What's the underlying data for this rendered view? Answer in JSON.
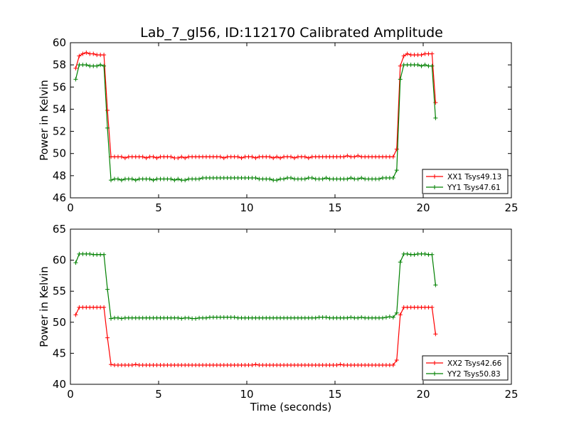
{
  "title": "Lab_7_gl56, ID:112170 Calibrated Amplitude",
  "chart_data": [
    {
      "type": "line",
      "title": "Lab_7_gl56, ID:112170 Calibrated Amplitude",
      "xlabel": "",
      "ylabel": "Power in Kelvin",
      "xlim": [
        0,
        25
      ],
      "ylim": [
        46,
        60
      ],
      "xticks": [
        0,
        5,
        10,
        15,
        20,
        25
      ],
      "yticks": [
        46,
        48,
        50,
        52,
        54,
        56,
        58,
        60
      ],
      "grid": false,
      "legend_position": "lower-right",
      "series": [
        {
          "name": "XX1 Tsys49.13",
          "color": "#ff0000",
          "x": [
            0.3,
            0.5,
            0.7,
            0.9,
            1.1,
            1.3,
            1.5,
            1.7,
            1.9,
            2.1,
            2.3,
            2.5,
            2.7,
            2.9,
            3.1,
            3.3,
            3.5,
            3.7,
            3.9,
            4.1,
            4.3,
            4.5,
            4.7,
            4.9,
            5.1,
            5.3,
            5.5,
            5.7,
            5.9,
            6.1,
            6.3,
            6.5,
            6.7,
            6.9,
            7.1,
            7.3,
            7.5,
            7.7,
            7.9,
            8.1,
            8.3,
            8.5,
            8.7,
            8.9,
            9.1,
            9.3,
            9.5,
            9.7,
            9.9,
            10.1,
            10.3,
            10.5,
            10.7,
            10.9,
            11.1,
            11.3,
            11.5,
            11.7,
            11.9,
            12.1,
            12.3,
            12.5,
            12.7,
            12.9,
            13.1,
            13.3,
            13.5,
            13.7,
            13.9,
            14.1,
            14.3,
            14.5,
            14.7,
            14.9,
            15.1,
            15.3,
            15.5,
            15.7,
            15.9,
            16.1,
            16.3,
            16.5,
            16.7,
            16.9,
            17.1,
            17.3,
            17.5,
            17.7,
            17.9,
            18.1,
            18.3,
            18.5,
            18.7,
            18.9,
            19.1,
            19.3,
            19.5,
            19.7,
            19.9,
            20.1,
            20.3,
            20.5,
            20.7
          ],
          "y": [
            57.7,
            58.8,
            59.0,
            59.1,
            59.0,
            59.0,
            58.9,
            58.9,
            58.9,
            53.9,
            49.7,
            49.7,
            49.7,
            49.7,
            49.6,
            49.7,
            49.7,
            49.7,
            49.7,
            49.7,
            49.6,
            49.7,
            49.7,
            49.6,
            49.7,
            49.7,
            49.7,
            49.7,
            49.6,
            49.6,
            49.7,
            49.6,
            49.7,
            49.7,
            49.7,
            49.7,
            49.7,
            49.7,
            49.7,
            49.7,
            49.7,
            49.7,
            49.6,
            49.7,
            49.7,
            49.7,
            49.7,
            49.6,
            49.7,
            49.7,
            49.7,
            49.6,
            49.7,
            49.7,
            49.7,
            49.7,
            49.6,
            49.7,
            49.6,
            49.7,
            49.7,
            49.7,
            49.6,
            49.7,
            49.7,
            49.7,
            49.6,
            49.7,
            49.7,
            49.7,
            49.7,
            49.7,
            49.7,
            49.7,
            49.7,
            49.7,
            49.7,
            49.8,
            49.7,
            49.7,
            49.8,
            49.7,
            49.7,
            49.7,
            49.7,
            49.7,
            49.7,
            49.7,
            49.7,
            49.7,
            49.7,
            50.4,
            57.9,
            58.8,
            59.0,
            58.9,
            58.9,
            58.9,
            58.9,
            59.0,
            59.0,
            59.0,
            54.6
          ]
        },
        {
          "name": "YY1 Tsys47.61",
          "color": "#008000",
          "x": [
            0.3,
            0.5,
            0.7,
            0.9,
            1.1,
            1.3,
            1.5,
            1.7,
            1.9,
            2.1,
            2.3,
            2.5,
            2.7,
            2.9,
            3.1,
            3.3,
            3.5,
            3.7,
            3.9,
            4.1,
            4.3,
            4.5,
            4.7,
            4.9,
            5.1,
            5.3,
            5.5,
            5.7,
            5.9,
            6.1,
            6.3,
            6.5,
            6.7,
            6.9,
            7.1,
            7.3,
            7.5,
            7.7,
            7.9,
            8.1,
            8.3,
            8.5,
            8.7,
            8.9,
            9.1,
            9.3,
            9.5,
            9.7,
            9.9,
            10.1,
            10.3,
            10.5,
            10.7,
            10.9,
            11.1,
            11.3,
            11.5,
            11.7,
            11.9,
            12.1,
            12.3,
            12.5,
            12.7,
            12.9,
            13.1,
            13.3,
            13.5,
            13.7,
            13.9,
            14.1,
            14.3,
            14.5,
            14.7,
            14.9,
            15.1,
            15.3,
            15.5,
            15.7,
            15.9,
            16.1,
            16.3,
            16.5,
            16.7,
            16.9,
            17.1,
            17.3,
            17.5,
            17.7,
            17.9,
            18.1,
            18.3,
            18.5,
            18.7,
            18.9,
            19.1,
            19.3,
            19.5,
            19.7,
            19.9,
            20.1,
            20.3,
            20.5,
            20.7
          ],
          "y": [
            56.7,
            58.0,
            58.0,
            58.0,
            57.9,
            57.9,
            57.9,
            58.0,
            57.9,
            52.3,
            47.6,
            47.7,
            47.7,
            47.6,
            47.7,
            47.7,
            47.7,
            47.6,
            47.7,
            47.7,
            47.7,
            47.7,
            47.6,
            47.7,
            47.7,
            47.7,
            47.7,
            47.7,
            47.6,
            47.7,
            47.6,
            47.6,
            47.7,
            47.7,
            47.7,
            47.7,
            47.8,
            47.8,
            47.8,
            47.8,
            47.8,
            47.8,
            47.8,
            47.8,
            47.8,
            47.8,
            47.8,
            47.8,
            47.8,
            47.8,
            47.8,
            47.8,
            47.7,
            47.7,
            47.7,
            47.7,
            47.6,
            47.6,
            47.7,
            47.7,
            47.8,
            47.8,
            47.7,
            47.7,
            47.7,
            47.7,
            47.8,
            47.8,
            47.7,
            47.7,
            47.7,
            47.8,
            47.7,
            47.7,
            47.7,
            47.7,
            47.7,
            47.7,
            47.8,
            47.7,
            47.7,
            47.8,
            47.7,
            47.7,
            47.7,
            47.7,
            47.7,
            47.8,
            47.8,
            47.8,
            47.8,
            48.5,
            56.7,
            58.0,
            58.0,
            58.0,
            58.0,
            58.0,
            57.9,
            58.0,
            57.9,
            57.9,
            53.2
          ]
        }
      ]
    },
    {
      "type": "line",
      "title": "",
      "xlabel": "Time (seconds)",
      "ylabel": "Power in Kelvin",
      "xlim": [
        0,
        25
      ],
      "ylim": [
        40,
        65
      ],
      "xticks": [
        0,
        5,
        10,
        15,
        20,
        25
      ],
      "yticks": [
        40,
        45,
        50,
        55,
        60,
        65
      ],
      "grid": false,
      "legend_position": "lower-right",
      "series": [
        {
          "name": "XX2 Tsys42.66",
          "color": "#ff0000",
          "x": [
            0.3,
            0.5,
            0.7,
            0.9,
            1.1,
            1.3,
            1.5,
            1.7,
            1.9,
            2.1,
            2.3,
            2.5,
            2.7,
            2.9,
            3.1,
            3.3,
            3.5,
            3.7,
            3.9,
            4.1,
            4.3,
            4.5,
            4.7,
            4.9,
            5.1,
            5.3,
            5.5,
            5.7,
            5.9,
            6.1,
            6.3,
            6.5,
            6.7,
            6.9,
            7.1,
            7.3,
            7.5,
            7.7,
            7.9,
            8.1,
            8.3,
            8.5,
            8.7,
            8.9,
            9.1,
            9.3,
            9.5,
            9.7,
            9.9,
            10.1,
            10.3,
            10.5,
            10.7,
            10.9,
            11.1,
            11.3,
            11.5,
            11.7,
            11.9,
            12.1,
            12.3,
            12.5,
            12.7,
            12.9,
            13.1,
            13.3,
            13.5,
            13.7,
            13.9,
            14.1,
            14.3,
            14.5,
            14.7,
            14.9,
            15.1,
            15.3,
            15.5,
            15.7,
            15.9,
            16.1,
            16.3,
            16.5,
            16.7,
            16.9,
            17.1,
            17.3,
            17.5,
            17.7,
            17.9,
            18.1,
            18.3,
            18.5,
            18.7,
            18.9,
            19.1,
            19.3,
            19.5,
            19.7,
            19.9,
            20.1,
            20.3,
            20.5,
            20.7
          ],
          "y": [
            51.2,
            52.4,
            52.4,
            52.4,
            52.4,
            52.4,
            52.4,
            52.4,
            52.4,
            47.5,
            43.2,
            43.1,
            43.1,
            43.1,
            43.1,
            43.1,
            43.1,
            43.2,
            43.1,
            43.1,
            43.1,
            43.1,
            43.1,
            43.1,
            43.1,
            43.1,
            43.1,
            43.1,
            43.1,
            43.1,
            43.1,
            43.1,
            43.1,
            43.1,
            43.1,
            43.1,
            43.1,
            43.1,
            43.1,
            43.1,
            43.1,
            43.1,
            43.1,
            43.1,
            43.1,
            43.1,
            43.1,
            43.1,
            43.1,
            43.1,
            43.1,
            43.2,
            43.1,
            43.1,
            43.1,
            43.1,
            43.1,
            43.1,
            43.1,
            43.1,
            43.1,
            43.1,
            43.1,
            43.1,
            43.1,
            43.1,
            43.1,
            43.1,
            43.1,
            43.1,
            43.1,
            43.1,
            43.1,
            43.1,
            43.1,
            43.2,
            43.1,
            43.1,
            43.1,
            43.1,
            43.1,
            43.1,
            43.1,
            43.1,
            43.1,
            43.1,
            43.1,
            43.1,
            43.1,
            43.1,
            43.1,
            43.9,
            51.2,
            52.4,
            52.4,
            52.4,
            52.4,
            52.4,
            52.4,
            52.4,
            52.4,
            52.4,
            48.1
          ]
        },
        {
          "name": "YY2 Tsys50.83",
          "color": "#008000",
          "x": [
            0.3,
            0.5,
            0.7,
            0.9,
            1.1,
            1.3,
            1.5,
            1.7,
            1.9,
            2.1,
            2.3,
            2.5,
            2.7,
            2.9,
            3.1,
            3.3,
            3.5,
            3.7,
            3.9,
            4.1,
            4.3,
            4.5,
            4.7,
            4.9,
            5.1,
            5.3,
            5.5,
            5.7,
            5.9,
            6.1,
            6.3,
            6.5,
            6.7,
            6.9,
            7.1,
            7.3,
            7.5,
            7.7,
            7.9,
            8.1,
            8.3,
            8.5,
            8.7,
            8.9,
            9.1,
            9.3,
            9.5,
            9.7,
            9.9,
            10.1,
            10.3,
            10.5,
            10.7,
            10.9,
            11.1,
            11.3,
            11.5,
            11.7,
            11.9,
            12.1,
            12.3,
            12.5,
            12.7,
            12.9,
            13.1,
            13.3,
            13.5,
            13.7,
            13.9,
            14.1,
            14.3,
            14.5,
            14.7,
            14.9,
            15.1,
            15.3,
            15.5,
            15.7,
            15.9,
            16.1,
            16.3,
            16.5,
            16.7,
            16.9,
            17.1,
            17.3,
            17.5,
            17.7,
            17.9,
            18.1,
            18.3,
            18.5,
            18.7,
            18.9,
            19.1,
            19.3,
            19.5,
            19.7,
            19.9,
            20.1,
            20.3,
            20.5,
            20.7
          ],
          "y": [
            59.6,
            61.0,
            61.0,
            61.0,
            61.0,
            60.9,
            60.9,
            60.9,
            60.9,
            55.3,
            50.6,
            50.7,
            50.7,
            50.6,
            50.7,
            50.7,
            50.7,
            50.7,
            50.7,
            50.7,
            50.7,
            50.7,
            50.7,
            50.7,
            50.7,
            50.7,
            50.7,
            50.7,
            50.7,
            50.7,
            50.6,
            50.7,
            50.7,
            50.6,
            50.6,
            50.7,
            50.7,
            50.7,
            50.8,
            50.8,
            50.8,
            50.8,
            50.8,
            50.8,
            50.8,
            50.8,
            50.7,
            50.7,
            50.7,
            50.7,
            50.7,
            50.7,
            50.7,
            50.7,
            50.7,
            50.7,
            50.7,
            50.7,
            50.7,
            50.7,
            50.7,
            50.7,
            50.7,
            50.7,
            50.7,
            50.7,
            50.7,
            50.7,
            50.7,
            50.8,
            50.8,
            50.8,
            50.7,
            50.7,
            50.7,
            50.7,
            50.7,
            50.7,
            50.8,
            50.7,
            50.7,
            50.8,
            50.7,
            50.7,
            50.7,
            50.7,
            50.7,
            50.7,
            50.8,
            50.9,
            50.8,
            51.5,
            59.7,
            61.0,
            61.0,
            60.9,
            60.9,
            61.0,
            61.0,
            61.0,
            60.9,
            60.9,
            56.0
          ]
        }
      ]
    }
  ]
}
